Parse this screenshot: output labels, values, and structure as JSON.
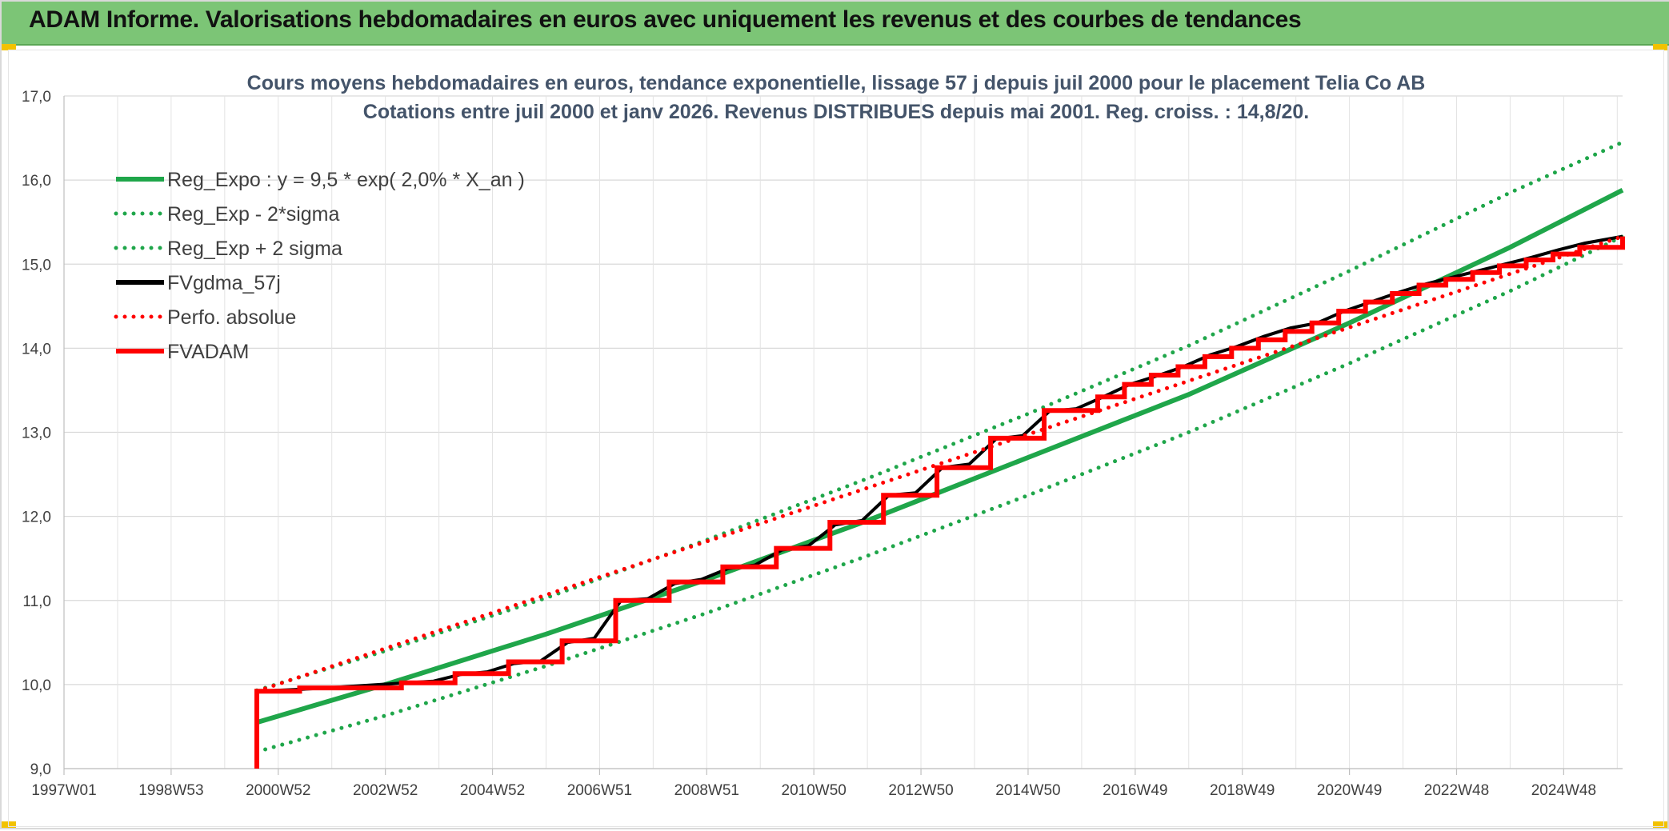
{
  "banner": {
    "title": "ADAM Informe. Valorisations hebdomadaires en euros avec uniquement les revenus et des courbes de tendances"
  },
  "chart_data": {
    "type": "line",
    "title_lines": [
      "Cours moyens hebdomadaires en euros, tendance exponentielle, lissage 57 j depuis juil 2000 pour le placement Telia Co AB",
      "Cotations entre juil 2000 et janv 2026. Revenus DISTRIBUES depuis mai 2001. Reg. croiss. : 14,8/20."
    ],
    "ylim": [
      9.0,
      17.0
    ],
    "y_ticks": [
      "9,0",
      "10,0",
      "11,0",
      "12,0",
      "13,0",
      "14,0",
      "15,0",
      "16,0",
      "17,0"
    ],
    "x_range": [
      1997.0,
      2026.1
    ],
    "x_ticks": [
      {
        "label": "1997W01",
        "year": 1997.0
      },
      {
        "label": "1998W53",
        "year": 1999.0
      },
      {
        "label": "2000W52",
        "year": 2001.0
      },
      {
        "label": "2002W52",
        "year": 2003.0
      },
      {
        "label": "2004W52",
        "year": 2005.0
      },
      {
        "label": "2006W51",
        "year": 2007.0
      },
      {
        "label": "2008W51",
        "year": 2009.0
      },
      {
        "label": "2010W50",
        "year": 2011.0
      },
      {
        "label": "2012W50",
        "year": 2013.0
      },
      {
        "label": "2014W50",
        "year": 2015.0
      },
      {
        "label": "2016W49",
        "year": 2017.0
      },
      {
        "label": "2018W49",
        "year": 2019.0
      },
      {
        "label": "2020W49",
        "year": 2021.0
      },
      {
        "label": "2022W48",
        "year": 2023.0
      },
      {
        "label": "2024W48",
        "year": 2025.0
      }
    ],
    "grid": true,
    "legend_position": "top-left",
    "series": [
      {
        "name": "Reg_Expo : y = 9,5 * exp( 2,0% *  X_an )",
        "color": "#1fa64a",
        "style": "solid",
        "x": [
          2000.6,
          2003,
          2006,
          2009,
          2012,
          2015,
          2018,
          2021,
          2024,
          2026.1
        ],
        "y": [
          9.55,
          10.0,
          10.6,
          11.25,
          11.95,
          12.7,
          13.45,
          14.3,
          15.2,
          15.88
        ]
      },
      {
        "name": "Reg_Exp - 2*sigma",
        "color": "#1fa64a",
        "style": "dotted",
        "x": [
          2000.6,
          2003,
          2006,
          2009,
          2012,
          2015,
          2018,
          2021,
          2024,
          2026.1
        ],
        "y": [
          9.2,
          9.63,
          10.22,
          10.85,
          11.53,
          12.25,
          13.0,
          13.82,
          14.68,
          15.33
        ]
      },
      {
        "name": "Reg_Exp + 2 sigma",
        "color": "#1fa64a",
        "style": "dotted",
        "x": [
          2000.6,
          2003,
          2006,
          2009,
          2012,
          2015,
          2018,
          2021,
          2024,
          2026.1
        ],
        "y": [
          9.93,
          10.4,
          11.03,
          11.72,
          12.45,
          13.22,
          14.03,
          14.92,
          15.85,
          16.45
        ]
      },
      {
        "name": "FVgdma_57j",
        "color": "#000000",
        "style": "solid-smooth",
        "x": [
          2000.6,
          2001.3,
          2001.9,
          2002.4,
          2002.9,
          2003.4,
          2003.9,
          2004.4,
          2004.9,
          2005.4,
          2005.9,
          2006.4,
          2006.9,
          2007.4,
          2007.9,
          2008.4,
          2008.9,
          2009.4,
          2009.9,
          2010.4,
          2010.9,
          2011.4,
          2011.9,
          2012.4,
          2012.9,
          2013.4,
          2013.9,
          2014.4,
          2014.9,
          2015.4,
          2015.9,
          2016.4,
          2016.9,
          2017.4,
          2017.9,
          2018.4,
          2018.9,
          2019.4,
          2019.9,
          2020.4,
          2020.9,
          2021.4,
          2021.9,
          2022.4,
          2022.9,
          2023.4,
          2023.9,
          2024.4,
          2024.9,
          2025.4,
          2026.1
        ],
        "y": [
          9.92,
          9.94,
          9.96,
          9.98,
          10.0,
          10.02,
          10.04,
          10.12,
          10.15,
          10.25,
          10.28,
          10.5,
          10.55,
          11.0,
          11.02,
          11.2,
          11.25,
          11.38,
          11.42,
          11.6,
          11.65,
          11.9,
          11.95,
          12.25,
          12.28,
          12.58,
          12.62,
          12.92,
          12.96,
          13.25,
          13.28,
          13.42,
          13.57,
          13.67,
          13.78,
          13.92,
          14.02,
          14.14,
          14.24,
          14.3,
          14.44,
          14.55,
          14.66,
          14.76,
          14.84,
          14.92,
          15.0,
          15.08,
          15.17,
          15.25,
          15.33
        ]
      },
      {
        "name": "Perfo. absolue",
        "color": "#ff0000",
        "style": "dotted",
        "x": [
          2000.6,
          2026.1
        ],
        "y": [
          9.92,
          15.33
        ]
      },
      {
        "name": "FVADAM",
        "color": "#ff0000",
        "style": "step",
        "x": [
          2000.6,
          2000.6,
          2001.4,
          2003.3,
          2004.3,
          2005.3,
          2006.3,
          2007.3,
          2008.3,
          2009.3,
          2010.3,
          2011.3,
          2012.3,
          2013.3,
          2014.3,
          2015.3,
          2016.3,
          2016.8,
          2017.3,
          2017.8,
          2018.3,
          2018.8,
          2019.3,
          2019.8,
          2020.3,
          2020.8,
          2021.3,
          2021.8,
          2022.3,
          2022.8,
          2023.3,
          2023.8,
          2024.3,
          2024.8,
          2025.3,
          2026.1
        ],
        "y": [
          9.0,
          9.92,
          9.96,
          10.02,
          10.13,
          10.27,
          10.52,
          11.0,
          11.22,
          11.4,
          11.62,
          11.93,
          12.25,
          12.58,
          12.93,
          13.26,
          13.42,
          13.57,
          13.68,
          13.78,
          13.9,
          14.0,
          14.1,
          14.2,
          14.3,
          14.44,
          14.55,
          14.65,
          14.75,
          14.82,
          14.9,
          14.98,
          15.05,
          15.12,
          15.2,
          15.33
        ]
      }
    ]
  }
}
